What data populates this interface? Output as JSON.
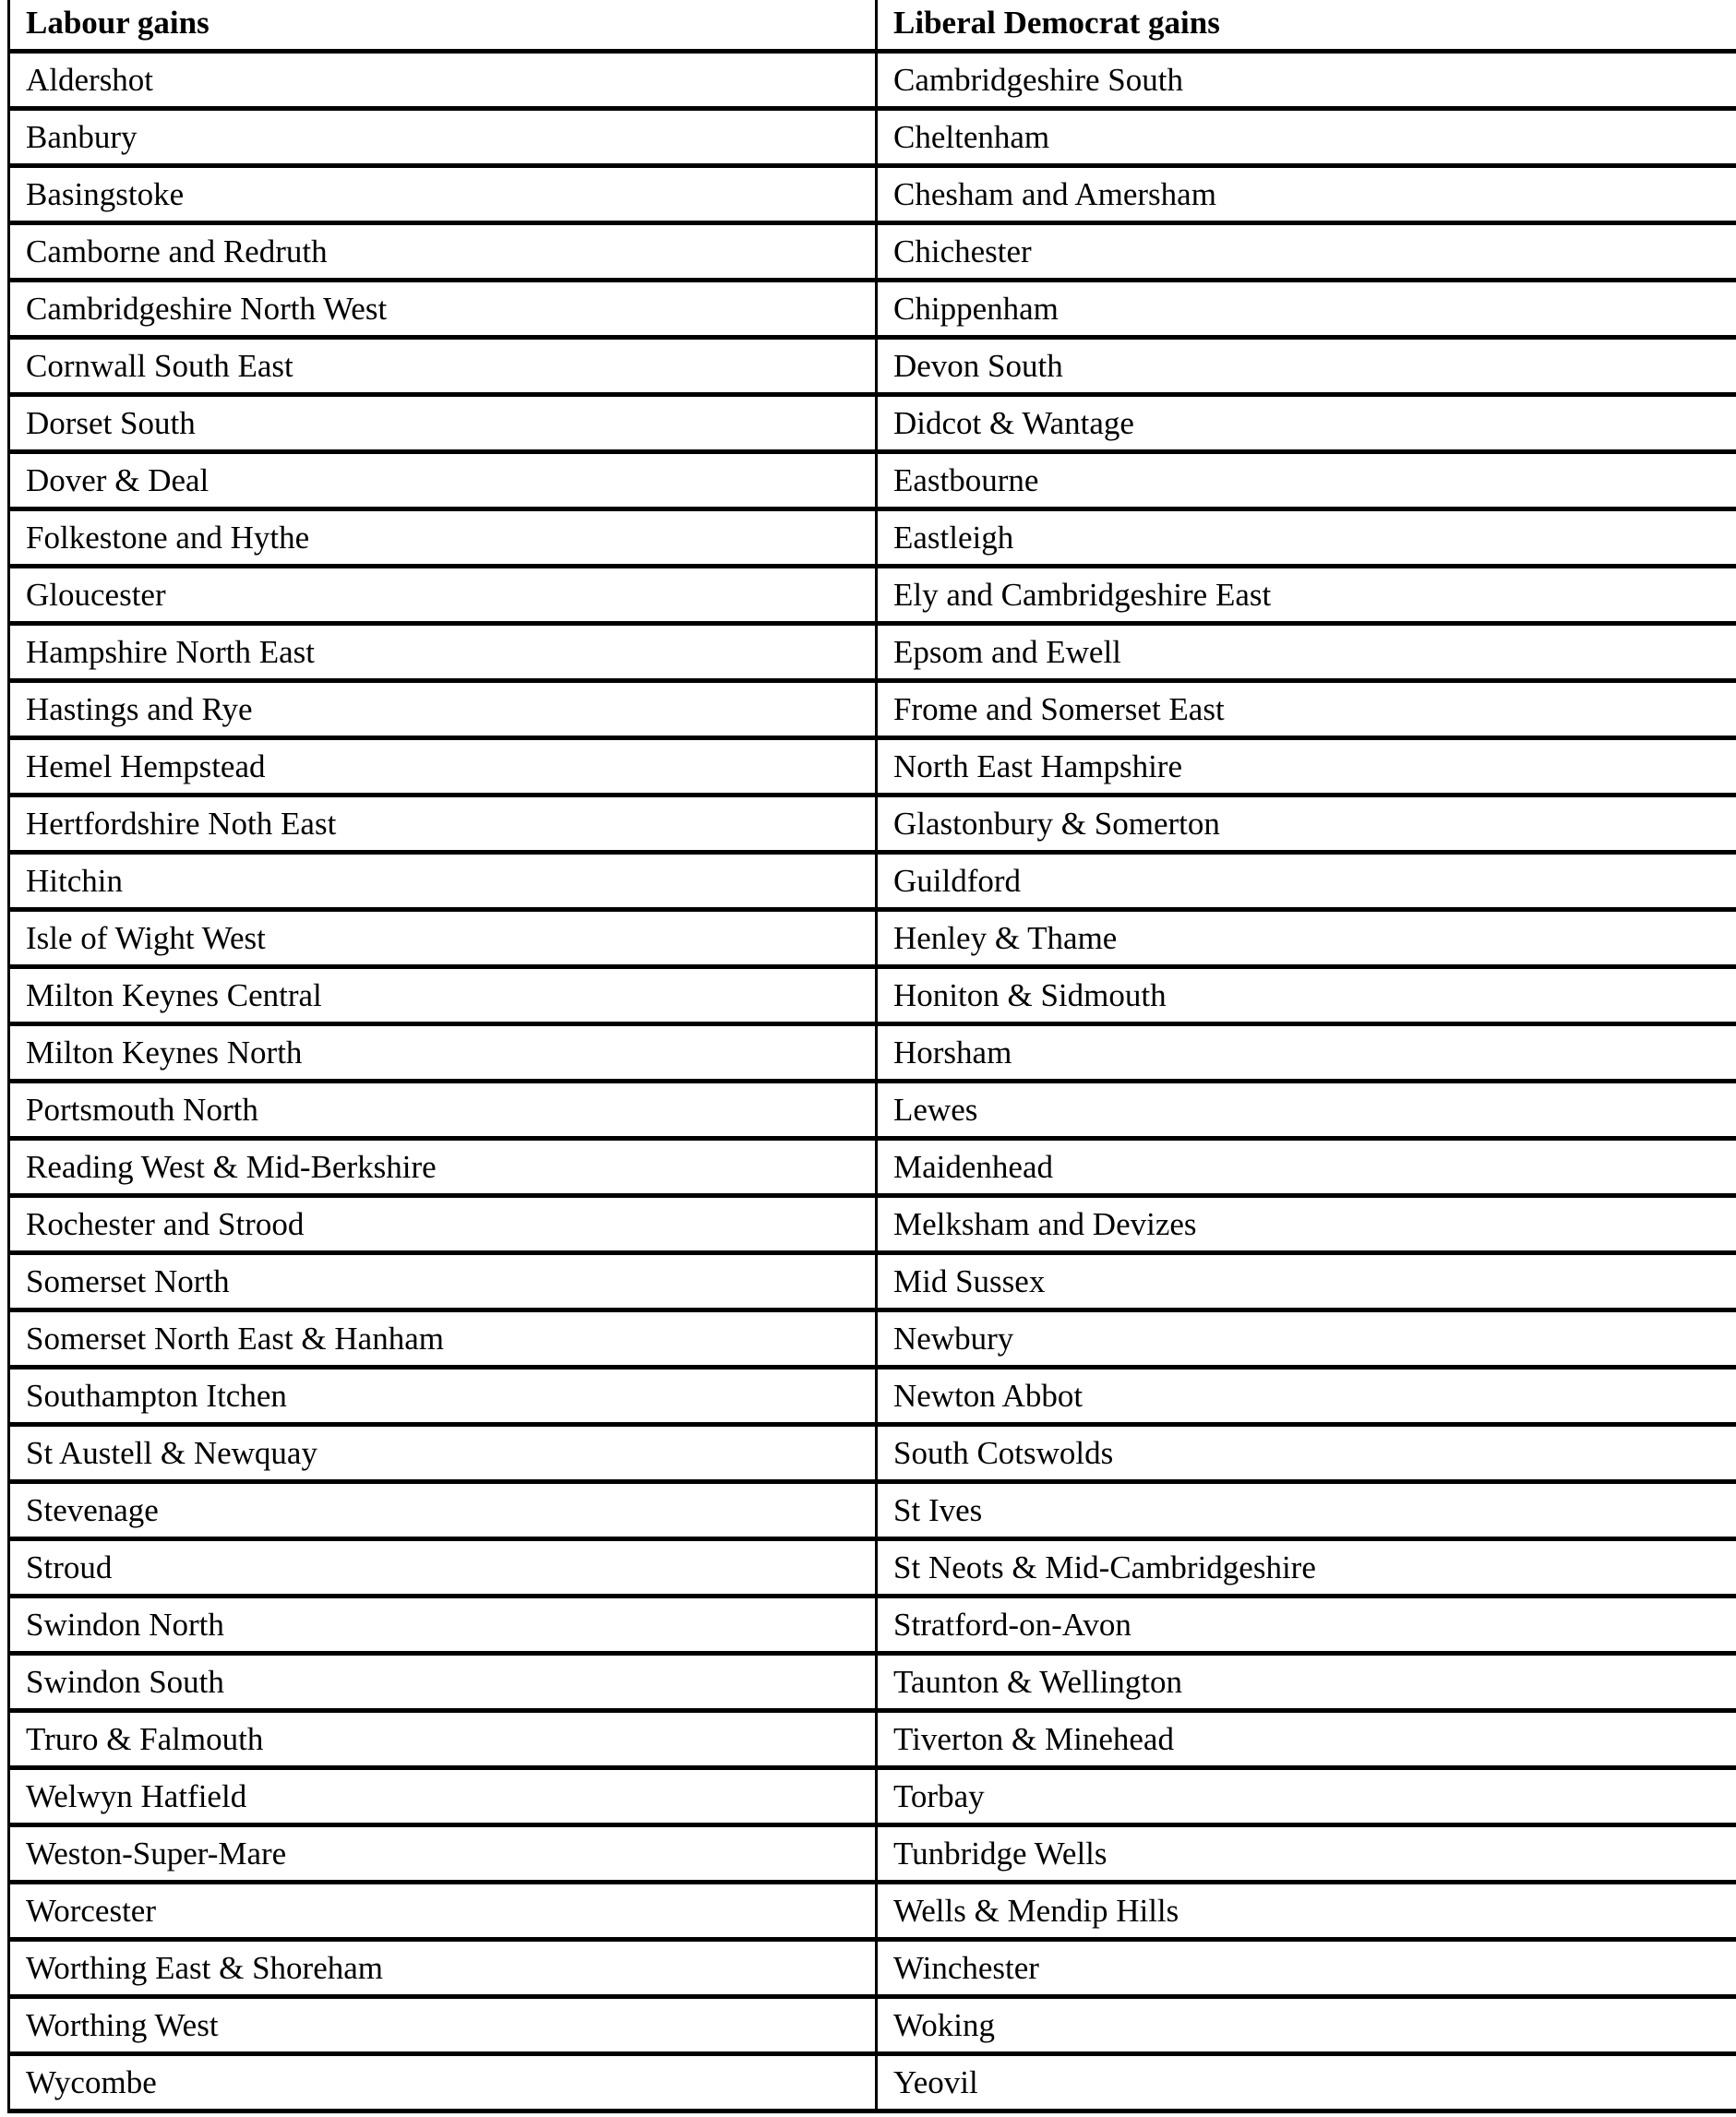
{
  "table": {
    "headers": [
      "Labour gains",
      "Liberal Democrat gains"
    ],
    "rows": [
      [
        "Aldershot",
        "Cambridgeshire South"
      ],
      [
        "Banbury",
        "Cheltenham"
      ],
      [
        "Basingstoke",
        "Chesham and Amersham"
      ],
      [
        "Camborne and Redruth",
        "Chichester"
      ],
      [
        "Cambridgeshire North West",
        "Chippenham"
      ],
      [
        "Cornwall South East",
        "Devon South"
      ],
      [
        "Dorset South",
        "Didcot & Wantage"
      ],
      [
        "Dover & Deal",
        "Eastbourne"
      ],
      [
        "Folkestone and Hythe",
        "Eastleigh"
      ],
      [
        "Gloucester",
        "Ely and Cambridgeshire East"
      ],
      [
        "Hampshire North East",
        "Epsom and Ewell"
      ],
      [
        "Hastings and Rye",
        "Frome and Somerset East"
      ],
      [
        "Hemel Hempstead",
        "North East Hampshire"
      ],
      [
        "Hertfordshire Noth East",
        "Glastonbury & Somerton"
      ],
      [
        "Hitchin",
        "Guildford"
      ],
      [
        "Isle of Wight West",
        "Henley & Thame"
      ],
      [
        "Milton Keynes Central",
        "Honiton & Sidmouth"
      ],
      [
        "Milton Keynes North",
        "Horsham"
      ],
      [
        "Portsmouth North",
        "Lewes"
      ],
      [
        "Reading West & Mid-Berkshire",
        "Maidenhead"
      ],
      [
        "Rochester and Strood",
        "Melksham and Devizes"
      ],
      [
        "Somerset North",
        "Mid Sussex"
      ],
      [
        "Somerset North East & Hanham",
        "Newbury"
      ],
      [
        "Southampton Itchen",
        "Newton Abbot"
      ],
      [
        "St Austell & Newquay",
        "South Cotswolds"
      ],
      [
        "Stevenage",
        "St Ives"
      ],
      [
        "Stroud",
        "St Neots & Mid-Cambridgeshire"
      ],
      [
        "Swindon North",
        "Stratford-on-Avon"
      ],
      [
        "Swindon South",
        "Taunton & Wellington"
      ],
      [
        "Truro & Falmouth",
        "Tiverton & Minehead"
      ],
      [
        "Welwyn Hatfield",
        "Torbay"
      ],
      [
        "Weston-Super-Mare",
        "Tunbridge Wells"
      ],
      [
        "Worcester",
        "Wells & Mendip Hills"
      ],
      [
        "Worthing East & Shoreham",
        "Winchester"
      ],
      [
        "Worthing West",
        "Woking"
      ],
      [
        "Wycombe",
        "Yeovil"
      ]
    ]
  }
}
